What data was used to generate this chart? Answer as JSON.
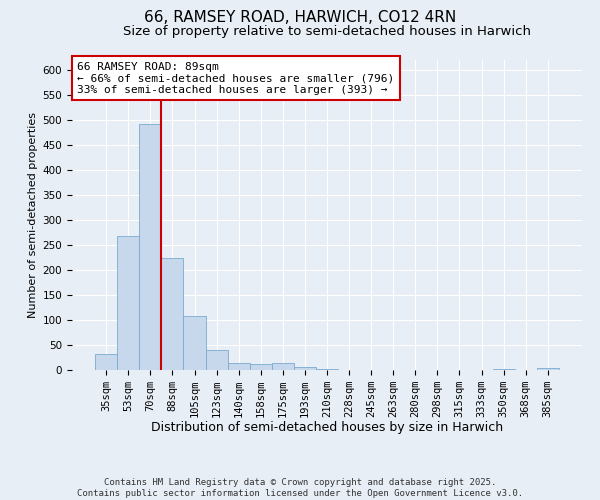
{
  "title": "66, RAMSEY ROAD, HARWICH, CO12 4RN",
  "subtitle": "Size of property relative to semi-detached houses in Harwich",
  "xlabel": "Distribution of semi-detached houses by size in Harwich",
  "ylabel": "Number of semi-detached properties",
  "categories": [
    "35sqm",
    "53sqm",
    "70sqm",
    "88sqm",
    "105sqm",
    "123sqm",
    "140sqm",
    "158sqm",
    "175sqm",
    "193sqm",
    "210sqm",
    "228sqm",
    "245sqm",
    "263sqm",
    "280sqm",
    "298sqm",
    "315sqm",
    "333sqm",
    "350sqm",
    "368sqm",
    "385sqm"
  ],
  "values": [
    33,
    268,
    493,
    224,
    109,
    40,
    15,
    13,
    14,
    7,
    2,
    1,
    0,
    0,
    0,
    0,
    0,
    0,
    3,
    0,
    4
  ],
  "bar_color": "#c8d8ec",
  "bar_edge_color": "#7aaad0",
  "vline_color": "#cc0000",
  "annotation_text": "66 RAMSEY ROAD: 89sqm\n← 66% of semi-detached houses are smaller (796)\n33% of semi-detached houses are larger (393) →",
  "annotation_box_color": "#ffffff",
  "annotation_box_edge": "#cc0000",
  "ylim": [
    0,
    620
  ],
  "yticks": [
    0,
    50,
    100,
    150,
    200,
    250,
    300,
    350,
    400,
    450,
    500,
    550,
    600
  ],
  "background_color": "#e8eef5",
  "footnote": "Contains HM Land Registry data © Crown copyright and database right 2025.\nContains public sector information licensed under the Open Government Licence v3.0.",
  "title_fontsize": 11,
  "subtitle_fontsize": 9.5,
  "xlabel_fontsize": 9,
  "ylabel_fontsize": 8,
  "tick_fontsize": 7.5,
  "annotation_fontsize": 8,
  "footnote_fontsize": 6.5
}
